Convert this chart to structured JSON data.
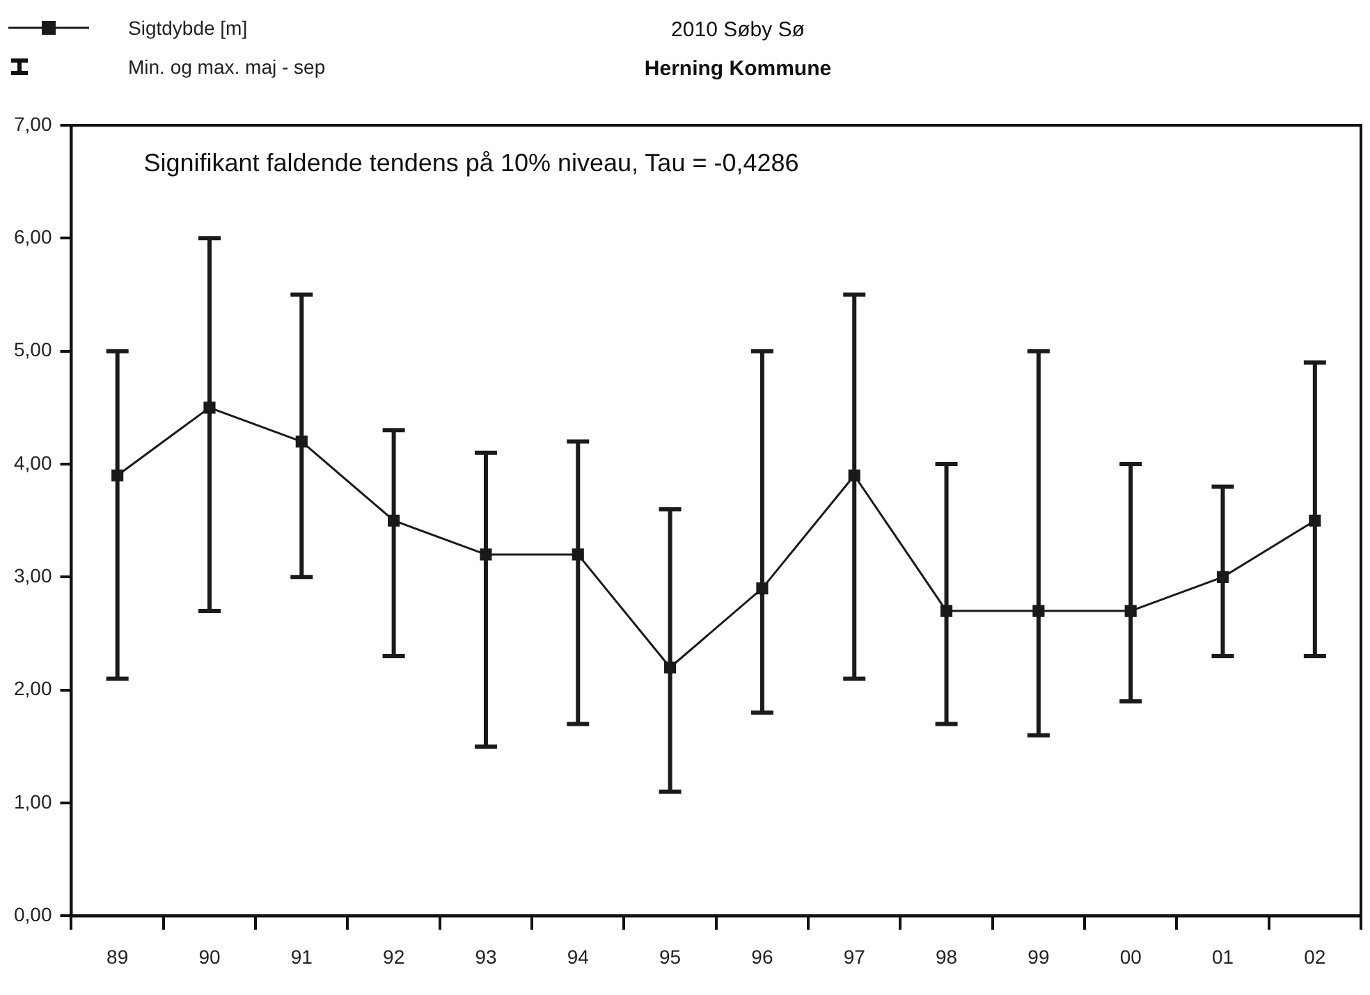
{
  "chart_data": {
    "type": "line",
    "title": "2010 Søby Sø",
    "subtitle": "Herning Kommune",
    "annotations": [
      "Signifikant faldende tendens på 10% niveau, Tau = -0,4286",
      "Min. og max. maj - sep"
    ],
    "categories": [
      "89",
      "90",
      "91",
      "92",
      "93",
      "94",
      "95",
      "96",
      "97",
      "98",
      "99",
      "00",
      "01",
      "02"
    ],
    "series": [
      {
        "name": "Sigtdybde [m]",
        "color": "#1a1a1a",
        "values": [
          3.9,
          4.5,
          4.2,
          3.5,
          3.2,
          3.2,
          2.2,
          2.9,
          3.9,
          2.7,
          2.7,
          2.7,
          3.0,
          3.5
        ],
        "errors": [
          [
            2.1,
            5.0
          ],
          [
            2.7,
            6.0
          ],
          [
            3.0,
            5.5
          ],
          [
            2.3,
            4.3
          ],
          [
            1.5,
            4.1
          ],
          [
            1.7,
            4.2
          ],
          [
            1.1,
            3.6
          ],
          [
            1.8,
            5.0
          ],
          [
            2.1,
            5.5
          ],
          [
            1.7,
            4.0
          ],
          [
            1.6,
            5.0
          ],
          [
            1.9,
            4.0
          ],
          [
            2.3,
            3.8
          ],
          [
            2.3,
            4.9
          ]
        ]
      }
    ],
    "ylim": [
      0,
      7
    ],
    "yticks": [
      {
        "value": 0,
        "label": "0,00"
      },
      {
        "value": 1,
        "label": "1,00"
      },
      {
        "value": 2,
        "label": "2,00"
      },
      {
        "value": 3,
        "label": "3,00"
      },
      {
        "value": 4,
        "label": "4,00"
      },
      {
        "value": 5,
        "label": "5,00"
      },
      {
        "value": 6,
        "label": "6,00"
      },
      {
        "value": 7,
        "label": "7,00"
      }
    ],
    "grid": false,
    "legend": "top left",
    "marker": "square",
    "line_style": "solid"
  }
}
